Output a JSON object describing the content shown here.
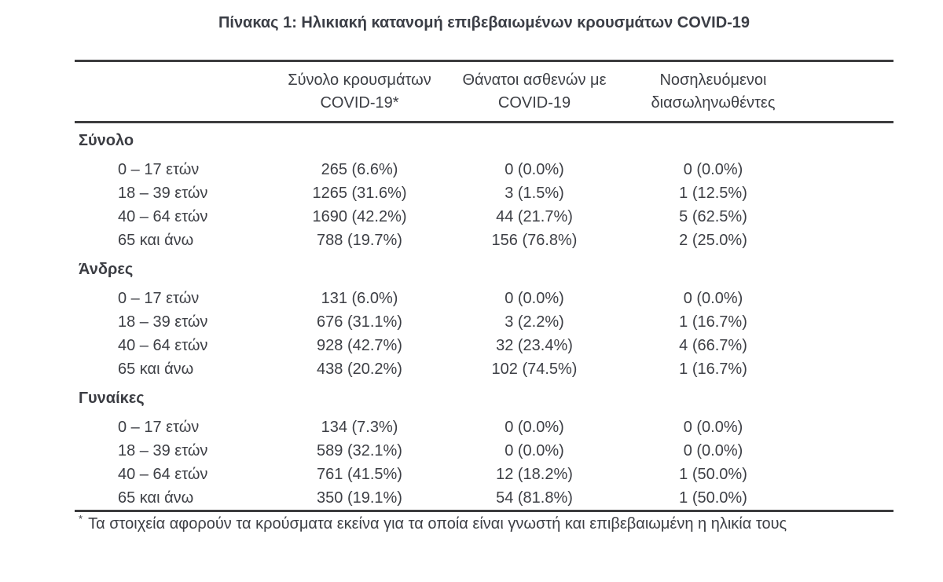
{
  "title": "Πίνακας 1: Ηλικιακή κατανομή επιβεβαιωμένων κρουσμάτων COVID-19",
  "columns": {
    "cases_line1": "Σύνολο κρουσμάτων",
    "cases_line2": "COVID-19*",
    "deaths_line1": "Θάνατοι ασθενών με",
    "deaths_line2": "COVID-19",
    "intubated_line1": "Νοσηλευόμενοι",
    "intubated_line2": "διασωληνωθέντες"
  },
  "sections": [
    {
      "label": "Σύνολο",
      "rows": [
        {
          "age": "0 – 17 ετών",
          "cases": "265 (6.6%)",
          "deaths": "0 (0.0%)",
          "intubated": "0 (0.0%)"
        },
        {
          "age": "18 – 39 ετών",
          "cases": "1265 (31.6%)",
          "deaths": "3 (1.5%)",
          "intubated": "1 (12.5%)"
        },
        {
          "age": "40 – 64 ετών",
          "cases": "1690 (42.2%)",
          "deaths": "44 (21.7%)",
          "intubated": "5 (62.5%)"
        },
        {
          "age": "65 και άνω",
          "cases": "788 (19.7%)",
          "deaths": "156 (76.8%)",
          "intubated": "2 (25.0%)"
        }
      ]
    },
    {
      "label": "Άνδρες",
      "rows": [
        {
          "age": "0 – 17 ετών",
          "cases": "131 (6.0%)",
          "deaths": "0 (0.0%)",
          "intubated": "0 (0.0%)"
        },
        {
          "age": "18 – 39 ετών",
          "cases": "676 (31.1%)",
          "deaths": "3 (2.2%)",
          "intubated": "1 (16.7%)"
        },
        {
          "age": "40 – 64 ετών",
          "cases": "928 (42.7%)",
          "deaths": "32 (23.4%)",
          "intubated": "4 (66.7%)"
        },
        {
          "age": "65 και άνω",
          "cases": "438 (20.2%)",
          "deaths": "102 (74.5%)",
          "intubated": "1 (16.7%)"
        }
      ]
    },
    {
      "label": "Γυναίκες",
      "rows": [
        {
          "age": "0 – 17 ετών",
          "cases": "134 (7.3%)",
          "deaths": "0 (0.0%)",
          "intubated": "0 (0.0%)"
        },
        {
          "age": "18 – 39 ετών",
          "cases": "589 (32.1%)",
          "deaths": "0 (0.0%)",
          "intubated": "0 (0.0%)"
        },
        {
          "age": "40 – 64 ετών",
          "cases": "761 (41.5%)",
          "deaths": "12 (18.2%)",
          "intubated": "1 (50.0%)"
        },
        {
          "age": "65 και άνω",
          "cases": "350 (19.1%)",
          "deaths": "54 (81.8%)",
          "intubated": "1 (50.0%)"
        }
      ]
    }
  ],
  "footnote": {
    "marker": "*",
    "text": "Τα στοιχεία αφορούν τα κρούσματα εκείνα για τα οποία είναι γνωστή και επιβεβαιωμένη η ηλικία τους"
  },
  "colors": {
    "text": "#3d3f45",
    "rule": "#3c3c3e"
  }
}
